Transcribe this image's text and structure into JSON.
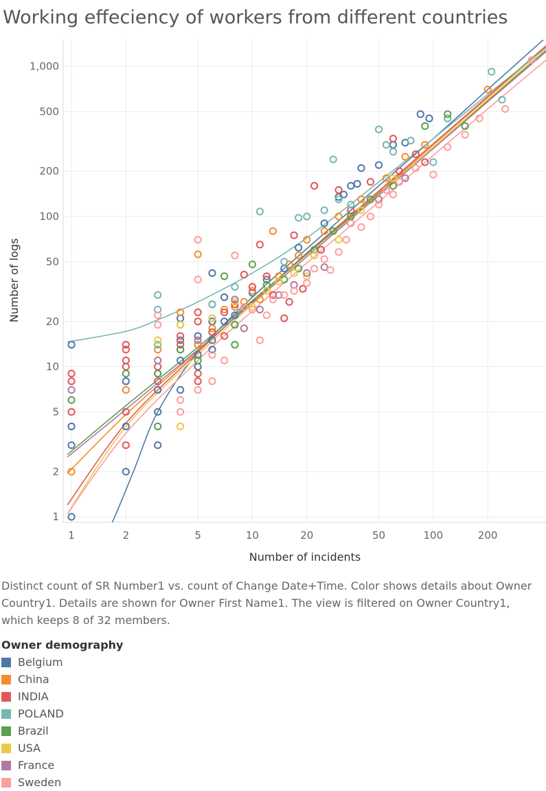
{
  "chart_data": {
    "type": "scatter",
    "title": "Working effeciency of workers from different countries",
    "xlabel": "Number of incidents",
    "ylabel": "Number of logs",
    "x_scale": "log",
    "y_scale": "log",
    "xlim": [
      0.9,
      420
    ],
    "ylim": [
      0.92,
      1500
    ],
    "x_ticks": [
      1,
      2,
      5,
      10,
      20,
      50,
      100,
      200
    ],
    "x_tick_labels": [
      "1",
      "2",
      "5",
      "10",
      "20",
      "50",
      "100",
      "200"
    ],
    "y_ticks": [
      1,
      2,
      5,
      10,
      20,
      50,
      100,
      200,
      500,
      1000
    ],
    "y_tick_labels": [
      "1",
      "2",
      "5",
      "10",
      "20",
      "50",
      "100",
      "200",
      "500",
      "1,000"
    ],
    "grid": true,
    "legend_position": "bottom-left",
    "series": [
      {
        "name": "Belgium",
        "color": "#4e79a7",
        "trend": [
          [
            0.95,
            0.22
          ],
          [
            1.3,
            0.5
          ],
          [
            1.7,
            0.95
          ],
          [
            2.2,
            2.0
          ],
          [
            3,
            5.0
          ],
          [
            5,
            12.5
          ],
          [
            10,
            29
          ],
          [
            20,
            61
          ],
          [
            50,
            160
          ],
          [
            100,
            330
          ],
          [
            200,
            700
          ],
          [
            420,
            1560
          ]
        ],
        "points": [
          [
            1,
            14
          ],
          [
            1,
            3
          ],
          [
            1,
            4
          ],
          [
            1,
            1
          ],
          [
            2,
            2
          ],
          [
            2,
            4
          ],
          [
            2,
            8
          ],
          [
            3,
            3
          ],
          [
            3,
            5
          ],
          [
            3,
            7
          ],
          [
            3,
            9
          ],
          [
            4,
            7
          ],
          [
            4,
            11
          ],
          [
            4,
            13
          ],
          [
            4,
            15
          ],
          [
            4,
            21
          ],
          [
            5,
            10
          ],
          [
            5,
            12
          ],
          [
            5,
            14
          ],
          [
            5,
            16
          ],
          [
            6,
            13
          ],
          [
            6,
            15
          ],
          [
            6,
            20
          ],
          [
            6,
            26
          ],
          [
            6,
            42
          ],
          [
            7,
            20
          ],
          [
            7,
            29
          ],
          [
            8,
            22
          ],
          [
            10,
            31
          ],
          [
            12,
            38
          ],
          [
            15,
            45
          ],
          [
            18,
            62
          ],
          [
            25,
            90
          ],
          [
            30,
            135
          ],
          [
            32,
            140
          ],
          [
            35,
            160
          ],
          [
            38,
            165
          ],
          [
            40,
            210
          ],
          [
            50,
            220
          ],
          [
            60,
            300
          ],
          [
            70,
            310
          ],
          [
            85,
            480
          ],
          [
            95,
            450
          ]
        ]
      },
      {
        "name": "China",
        "color": "#f28e2b",
        "trend": [
          [
            0.95,
            1.95
          ],
          [
            2,
            4.8
          ],
          [
            5,
            12.8
          ],
          [
            10,
            27
          ],
          [
            20,
            56
          ],
          [
            50,
            145
          ],
          [
            100,
            300
          ],
          [
            200,
            620
          ],
          [
            420,
            1350
          ]
        ],
        "points": [
          [
            1,
            2
          ],
          [
            2,
            7
          ],
          [
            3,
            13
          ],
          [
            4,
            23
          ],
          [
            5,
            56
          ],
          [
            5,
            14
          ],
          [
            6,
            18
          ],
          [
            7,
            24
          ],
          [
            8,
            25
          ],
          [
            9,
            27
          ],
          [
            10,
            32
          ],
          [
            11,
            28
          ],
          [
            13,
            80
          ],
          [
            14,
            40
          ],
          [
            16,
            48
          ],
          [
            18,
            55
          ],
          [
            20,
            70
          ],
          [
            25,
            80
          ],
          [
            30,
            100
          ],
          [
            40,
            130
          ],
          [
            55,
            180
          ],
          [
            70,
            250
          ],
          [
            90,
            300
          ],
          [
            120,
            450
          ],
          [
            200,
            700
          ]
        ]
      },
      {
        "name": "INDIA",
        "color": "#e15759",
        "trend": [
          [
            0.95,
            1.2
          ],
          [
            2,
            4.2
          ],
          [
            5,
            12.5
          ],
          [
            10,
            27
          ],
          [
            20,
            57
          ],
          [
            50,
            148
          ],
          [
            100,
            305
          ],
          [
            200,
            630
          ],
          [
            420,
            1370
          ]
        ],
        "points": [
          [
            1,
            9
          ],
          [
            1,
            8
          ],
          [
            1,
            5
          ],
          [
            2,
            14
          ],
          [
            2,
            13
          ],
          [
            2,
            11
          ],
          [
            2,
            10
          ],
          [
            2,
            3
          ],
          [
            2,
            5
          ],
          [
            3,
            10
          ],
          [
            3,
            8
          ],
          [
            4,
            16
          ],
          [
            4,
            14
          ],
          [
            5,
            8
          ],
          [
            5,
            9
          ],
          [
            5,
            20
          ],
          [
            5,
            23
          ],
          [
            6,
            17
          ],
          [
            6,
            21
          ],
          [
            7,
            16
          ],
          [
            7,
            23
          ],
          [
            8,
            26
          ],
          [
            9,
            41
          ],
          [
            10,
            34
          ],
          [
            11,
            65
          ],
          [
            12,
            40
          ],
          [
            13,
            30
          ],
          [
            15,
            21
          ],
          [
            16,
            27
          ],
          [
            17,
            75
          ],
          [
            19,
            33
          ],
          [
            22,
            160
          ],
          [
            24,
            60
          ],
          [
            30,
            150
          ],
          [
            35,
            110
          ],
          [
            45,
            170
          ],
          [
            60,
            330
          ],
          [
            65,
            200
          ],
          [
            80,
            260
          ],
          [
            90,
            230
          ]
        ]
      },
      {
        "name": "POLAND",
        "color": "#76b7b2",
        "trend": [
          [
            0.95,
            14.6
          ],
          [
            2,
            17.2
          ],
          [
            3,
            20.5
          ],
          [
            5,
            27
          ],
          [
            10,
            42
          ],
          [
            20,
            72
          ],
          [
            50,
            170
          ],
          [
            100,
            330
          ],
          [
            200,
            650
          ],
          [
            420,
            1330
          ]
        ],
        "points": [
          [
            3,
            30
          ],
          [
            3,
            24
          ],
          [
            3,
            14
          ],
          [
            4,
            19
          ],
          [
            6,
            26
          ],
          [
            8,
            34
          ],
          [
            11,
            108
          ],
          [
            15,
            50
          ],
          [
            18,
            98
          ],
          [
            20,
            100
          ],
          [
            25,
            110
          ],
          [
            28,
            240
          ],
          [
            30,
            130
          ],
          [
            35,
            120
          ],
          [
            50,
            380
          ],
          [
            55,
            300
          ],
          [
            60,
            270
          ],
          [
            75,
            320
          ],
          [
            100,
            230
          ],
          [
            120,
            450
          ],
          [
            210,
            920
          ],
          [
            240,
            600
          ]
        ]
      },
      {
        "name": "Brazil",
        "color": "#59a14f",
        "trend": [
          [
            0.95,
            2.6
          ],
          [
            2,
            5.5
          ],
          [
            5,
            13.5
          ],
          [
            10,
            27.5
          ],
          [
            20,
            56
          ],
          [
            50,
            142
          ],
          [
            100,
            290
          ],
          [
            200,
            590
          ],
          [
            420,
            1270
          ]
        ],
        "points": [
          [
            1,
            6
          ],
          [
            2,
            9
          ],
          [
            3,
            9
          ],
          [
            3,
            4
          ],
          [
            4,
            13
          ],
          [
            5,
            11
          ],
          [
            7,
            40
          ],
          [
            8,
            14
          ],
          [
            8,
            19
          ],
          [
            10,
            48
          ],
          [
            12,
            35
          ],
          [
            15,
            38
          ],
          [
            18,
            45
          ],
          [
            22,
            60
          ],
          [
            28,
            80
          ],
          [
            35,
            100
          ],
          [
            45,
            130
          ],
          [
            60,
            160
          ],
          [
            90,
            400
          ],
          [
            120,
            480
          ],
          [
            150,
            400
          ]
        ]
      },
      {
        "name": "USA",
        "color": "#edc948",
        "trend": [
          [
            0.95,
            1.05
          ],
          [
            2,
            4.0
          ],
          [
            5,
            12
          ],
          [
            10,
            26
          ],
          [
            20,
            54
          ],
          [
            50,
            140
          ],
          [
            100,
            290
          ],
          [
            200,
            600
          ],
          [
            420,
            1300
          ]
        ],
        "points": [
          [
            3,
            15
          ],
          [
            4,
            4
          ],
          [
            4,
            19
          ],
          [
            6,
            21
          ],
          [
            8,
            27
          ],
          [
            10,
            25
          ],
          [
            12,
            32
          ],
          [
            14,
            37
          ],
          [
            17,
            42
          ],
          [
            20,
            40
          ],
          [
            22,
            55
          ],
          [
            30,
            70
          ],
          [
            40,
            110
          ],
          [
            60,
            180
          ]
        ]
      },
      {
        "name": "France",
        "color": "#b07aa1",
        "trend": [
          [
            0.95,
            2.5
          ],
          [
            2,
            5.2
          ],
          [
            5,
            13
          ],
          [
            10,
            26.5
          ],
          [
            20,
            54
          ],
          [
            50,
            138
          ],
          [
            100,
            283
          ],
          [
            200,
            580
          ],
          [
            420,
            1250
          ]
        ],
        "points": [
          [
            1,
            7
          ],
          [
            3,
            11
          ],
          [
            5,
            15
          ],
          [
            8,
            28
          ],
          [
            9,
            18
          ],
          [
            11,
            24
          ],
          [
            14,
            30
          ],
          [
            17,
            35
          ],
          [
            20,
            42
          ],
          [
            25,
            46
          ],
          [
            35,
            90
          ],
          [
            50,
            130
          ],
          [
            70,
            180
          ]
        ]
      },
      {
        "name": "Sweden",
        "color": "#ff9d9a",
        "trend": [
          [
            0.95,
            1.05
          ],
          [
            2,
            3.6
          ],
          [
            5,
            11
          ],
          [
            10,
            23.5
          ],
          [
            20,
            49
          ],
          [
            50,
            125
          ],
          [
            100,
            255
          ],
          [
            200,
            520
          ],
          [
            420,
            1100
          ]
        ],
        "points": [
          [
            3,
            19
          ],
          [
            3,
            22
          ],
          [
            4,
            5
          ],
          [
            4,
            6
          ],
          [
            5,
            7
          ],
          [
            5,
            38
          ],
          [
            5,
            70
          ],
          [
            6,
            8
          ],
          [
            6,
            12
          ],
          [
            7,
            11
          ],
          [
            8,
            55
          ],
          [
            9,
            25
          ],
          [
            10,
            24
          ],
          [
            11,
            15
          ],
          [
            12,
            22
          ],
          [
            13,
            28
          ],
          [
            15,
            30
          ],
          [
            17,
            32
          ],
          [
            20,
            36
          ],
          [
            22,
            45
          ],
          [
            25,
            52
          ],
          [
            27,
            44
          ],
          [
            30,
            58
          ],
          [
            33,
            70
          ],
          [
            35,
            90
          ],
          [
            40,
            85
          ],
          [
            45,
            100
          ],
          [
            50,
            120
          ],
          [
            55,
            150
          ],
          [
            60,
            140
          ],
          [
            65,
            170
          ],
          [
            80,
            210
          ],
          [
            100,
            190
          ],
          [
            120,
            290
          ],
          [
            150,
            350
          ],
          [
            180,
            450
          ],
          [
            250,
            520
          ],
          [
            350,
            1100
          ]
        ]
      }
    ]
  },
  "caption": "Distinct count of SR Number1 vs. count of Change Date+Time.  Color shows details about Owner Country1.  Details are shown for Owner First Name1. The view is filtered on Owner Country1, which keeps 8 of 32 members.",
  "legend": {
    "title": "Owner demography",
    "items": [
      {
        "label": "Belgium",
        "color": "#4e79a7"
      },
      {
        "label": "China",
        "color": "#f28e2b"
      },
      {
        "label": "INDIA",
        "color": "#e15759"
      },
      {
        "label": "POLAND",
        "color": "#76b7b2"
      },
      {
        "label": "Brazil",
        "color": "#59a14f"
      },
      {
        "label": "USA",
        "color": "#edc948"
      },
      {
        "label": "France",
        "color": "#b07aa1"
      },
      {
        "label": "Sweden",
        "color": "#ff9d9a"
      }
    ]
  }
}
